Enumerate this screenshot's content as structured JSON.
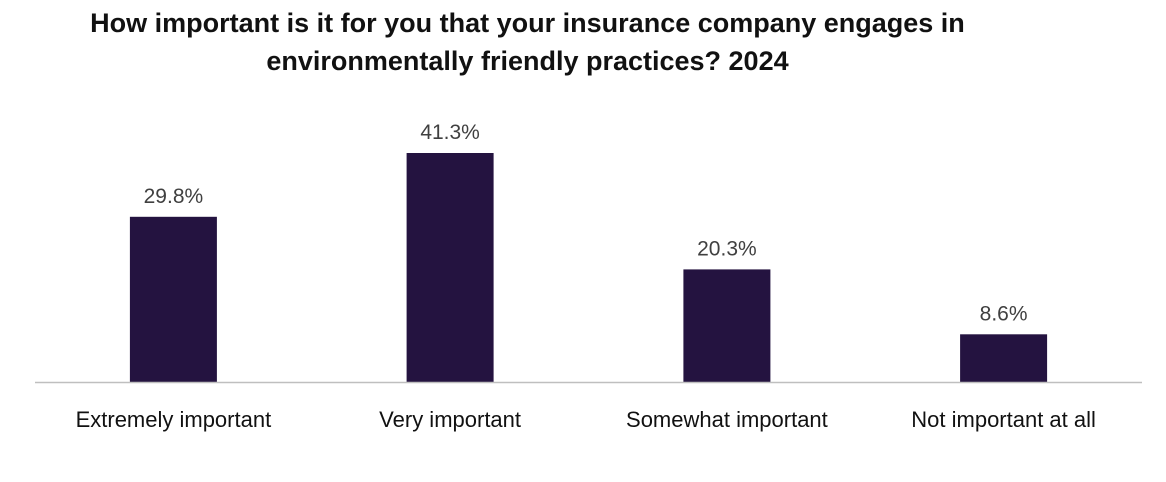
{
  "chart_data": {
    "type": "bar",
    "title": "How important is it for you that your insurance company engages in\nenvironmentally friendly practices? 2024",
    "categories": [
      "Extremely important",
      "Very important",
      "Somewhat important",
      "Not important at all"
    ],
    "values": [
      29.8,
      41.3,
      20.3,
      8.6
    ],
    "value_labels": [
      "29.8%",
      "41.3%",
      "20.3%",
      "8.6%"
    ],
    "unit": "%",
    "xlabel": "",
    "ylabel": "",
    "ylim": [
      0,
      45
    ],
    "grid": false,
    "legend": "none",
    "colors": {
      "bar": "#241340",
      "axis": "#bfbfbf",
      "label": "#404040"
    }
  }
}
